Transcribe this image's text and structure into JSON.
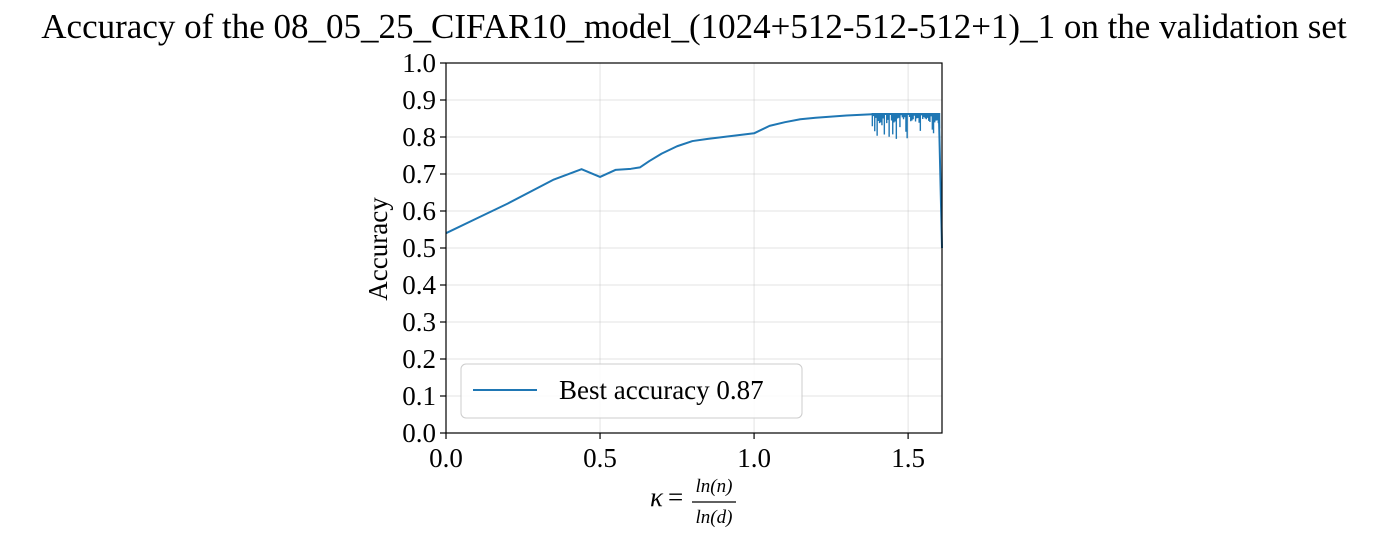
{
  "chart_data": {
    "type": "line",
    "title": "Accuracy of the 08_05_25_CIFAR10_model_(1024+512-512-512+1)_1 on the validation set",
    "xlabel_symbol": "κ",
    "xlabel_equals": "=",
    "xlabel_numerator": "ln(n)",
    "xlabel_denominator": "ln(d)",
    "ylabel": "Accuracy",
    "xlim": [
      0.0,
      1.61
    ],
    "ylim": [
      0.0,
      1.0
    ],
    "xticks": [
      0.0,
      0.5,
      1.0,
      1.5
    ],
    "xtick_labels": [
      "0.0",
      "0.5",
      "1.0",
      "1.5"
    ],
    "yticks": [
      0.0,
      0.1,
      0.2,
      0.3,
      0.4,
      0.5,
      0.6,
      0.7,
      0.8,
      0.9,
      1.0
    ],
    "ytick_labels": [
      "0.0",
      "0.1",
      "0.2",
      "0.3",
      "0.4",
      "0.5",
      "0.6",
      "0.7",
      "0.8",
      "0.9",
      "1.0"
    ],
    "grid": true,
    "legend_position": "lower-left",
    "series": [
      {
        "name": "Best accuracy 0.87",
        "color": "#1f77b4",
        "x": [
          0.0,
          0.1,
          0.2,
          0.35,
          0.44,
          0.5,
          0.55,
          0.6,
          0.63,
          0.66,
          0.7,
          0.75,
          0.8,
          0.85,
          0.9,
          0.95,
          1.0,
          1.05,
          1.1,
          1.15,
          1.2,
          1.25,
          1.3,
          1.35,
          1.4,
          1.45,
          1.5,
          1.55,
          1.6,
          1.61
        ],
        "y": [
          0.54,
          0.58,
          0.62,
          0.685,
          0.713,
          0.692,
          0.711,
          0.714,
          0.718,
          0.735,
          0.755,
          0.775,
          0.789,
          0.795,
          0.8,
          0.805,
          0.81,
          0.83,
          0.84,
          0.848,
          0.852,
          0.855,
          0.858,
          0.86,
          0.862,
          0.862,
          0.862,
          0.862,
          0.86,
          0.5
        ]
      }
    ],
    "noise_band": {
      "x_start": 1.38,
      "x_end": 1.605,
      "upper": 0.865,
      "lower_min": 0.79
    }
  }
}
